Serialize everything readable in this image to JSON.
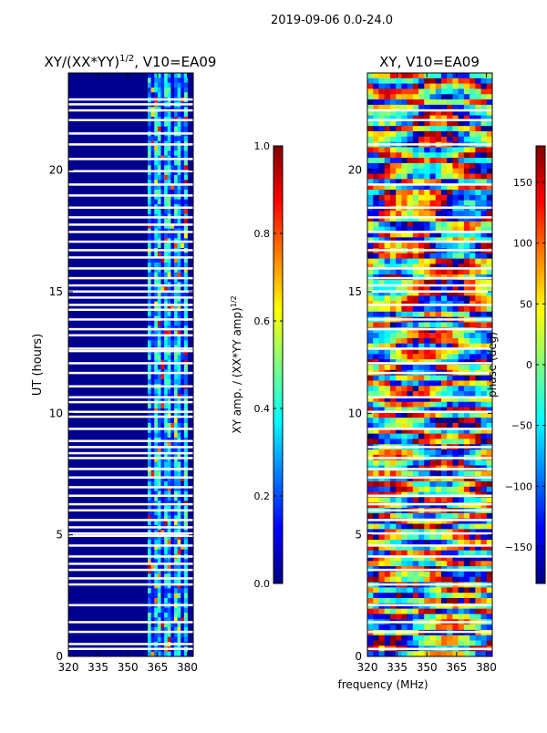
{
  "figure_title": "2019-09-06 0.0-24.0",
  "colors": {
    "jet": [
      "#00007f",
      "#0000ff",
      "#007fff",
      "#00ffff",
      "#7fff7f",
      "#ffff00",
      "#ff7f00",
      "#ff0000",
      "#7f0000"
    ],
    "background_panel": "#00008f",
    "gap": "#ffffff"
  },
  "chart_data": [
    {
      "type": "heatmap",
      "title_main": "XY/(XX*YY)",
      "title_sup": "1/2",
      "title_suffix": ", V10=EA09",
      "xlabel": "",
      "ylabel": "UT (hours)",
      "xlim": [
        320,
        383
      ],
      "ylim": [
        0,
        24
      ],
      "xticks": [
        320,
        335,
        350,
        365,
        380
      ],
      "xtick_labels": [
        "320",
        "335",
        "350",
        "365",
        "380"
      ],
      "yticks": [
        0,
        5,
        10,
        15,
        20
      ],
      "ytick_labels": [
        "0",
        "5",
        "10",
        "15",
        "20"
      ],
      "active_band_mhz": [
        360,
        380
      ],
      "flagged_hours": [
        0.3,
        0.5,
        1.0,
        1.4,
        2.1,
        2.95,
        3.2,
        3.55,
        3.8,
        4.1,
        4.55,
        4.95,
        5.05,
        5.3,
        5.6,
        6.0,
        6.25,
        6.6,
        6.95,
        7.35,
        7.7,
        8.15,
        8.35,
        8.6,
        8.85,
        9.35,
        9.85,
        10.05,
        10.45,
        10.65,
        11.1,
        11.65,
        12.05,
        12.55,
        12.65,
        13.2,
        13.45,
        13.85,
        14.25,
        14.45,
        14.75,
        15.0,
        15.25,
        15.55,
        15.95,
        16.4,
        16.7,
        17.05,
        17.45,
        17.75,
        18.05,
        18.45,
        18.95,
        19.4,
        19.95,
        20.45,
        21.05,
        21.5,
        22.05,
        22.45,
        22.7,
        22.9
      ]
    },
    {
      "type": "heatmap",
      "title_main": "XY, V10=EA09",
      "xlabel": "frequency (MHz)",
      "ylabel": "",
      "xlim": [
        320,
        383
      ],
      "ylim": [
        0,
        24
      ],
      "xticks": [
        320,
        335,
        350,
        365,
        380
      ],
      "xtick_labels": [
        "320",
        "335",
        "350",
        "365",
        "380"
      ],
      "yticks": [
        0,
        5,
        10,
        15,
        20
      ],
      "ytick_labels": [
        "0",
        "5",
        "10",
        "15",
        "20"
      ],
      "flagged_hours": [
        0.3,
        1.0,
        1.4,
        2.1,
        2.95,
        3.55,
        4.1,
        4.55,
        5.05,
        5.6,
        6.0,
        6.25,
        6.6,
        7.35,
        7.7,
        8.15,
        8.6,
        9.35,
        10.05,
        10.65,
        11.65,
        12.05,
        12.65,
        13.45,
        13.85,
        14.45,
        15.0,
        15.25,
        15.55,
        15.95,
        16.7,
        17.05,
        17.45,
        18.05,
        18.45,
        19.4,
        21.05,
        22.05,
        22.45
      ]
    }
  ],
  "colorbars": [
    {
      "label_main": "XY amp. / (XX*YY amp)",
      "label_sup": "1/2",
      "range": [
        0,
        1
      ],
      "ticks": [
        0.0,
        0.2,
        0.4,
        0.6,
        0.8,
        1.0
      ],
      "tick_labels": [
        "0.0",
        "0.2",
        "0.4",
        "0.6",
        "0.8",
        "1.0"
      ]
    },
    {
      "label_main": "phase (deg)",
      "range": [
        -180,
        180
      ],
      "ticks": [
        -150,
        -100,
        -50,
        0,
        50,
        100,
        150
      ],
      "tick_labels": [
        "−150",
        "−100",
        "−50",
        "0",
        "50",
        "100",
        "150"
      ]
    }
  ]
}
